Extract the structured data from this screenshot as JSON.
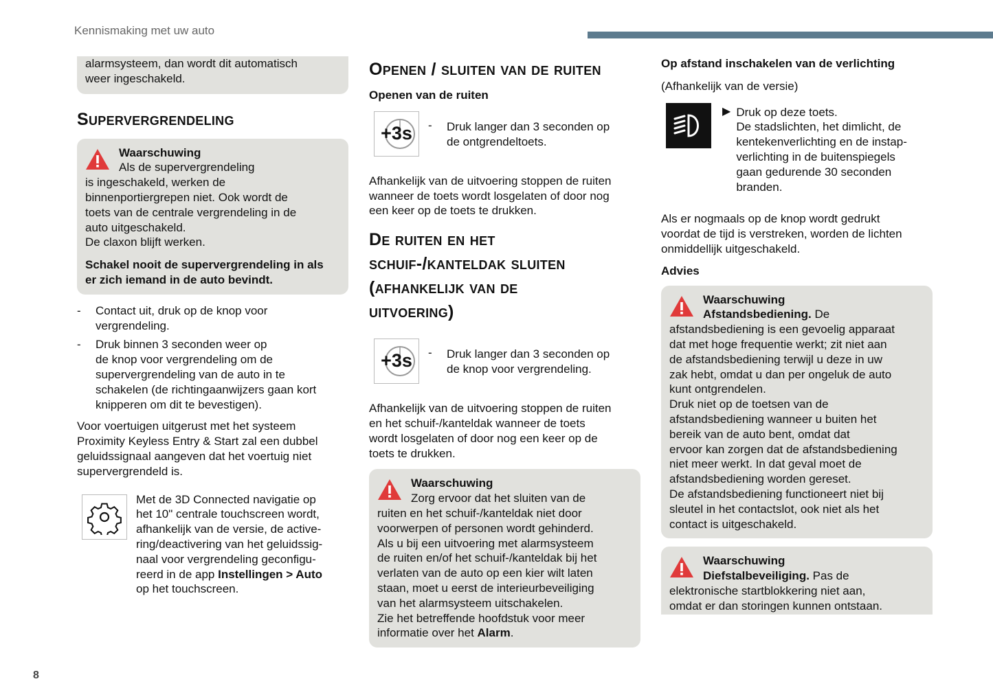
{
  "header": {
    "section": "Kennismaking met uw auto",
    "accent_color": "#5d7b8e"
  },
  "page_number": "8",
  "col1": {
    "top_box": "alarmsysteem, dan wordt dit automatisch\nweer ingeschakeld.",
    "heading": "Supervergrendeling",
    "warning": {
      "title": "Waarschuwing",
      "body": "Als de supervergrendeling\nis ingeschakeld, werken de\nbinnenportiergrepen niet. Ook wordt de\ntoets van de centrale vergrendeling in de\nauto uitgeschakeld.\nDe claxon blijft werken.",
      "bold": "Schakel nooit de supervergrendeling in als\ner zich iemand in de auto bevindt."
    },
    "bullets": [
      "Contact uit, druk op de knop voor\nvergrendeling.",
      "Druk binnen 3 seconden weer op\nde knop voor vergrendeling om de\nsupervergrendeling van de auto in te\nschakelen (de richtingaanwijzers gaan kort\nknipperen om dit te bevestigen)."
    ],
    "para": "Voor voertuigen uitgerust met het systeem\nProximity Keyless Entry & Start zal een dubbel\ngeluidssignaal aangeven dat het voertuig niet\nsupervergrendeld is.",
    "settings_text": "Met de 3D Connected navigatie op\nhet 10\" centrale touchscreen wordt,\nafhankelijk van de versie, de active-\nring/deactivering van het geluidssig-\nnaal voor vergrendeling geconfigu-\nreerd in de app ",
    "settings_bold": "Instellingen > Auto",
    "settings_end": "\nop het touchscreen."
  },
  "col2": {
    "heading1": "Openen / sluiten van de ruiten",
    "sub1": "Openen van de ruiten",
    "icon_label": "+3s",
    "step1": "Druk langer dan 3 seconden op\nde ontgrendeltoets.",
    "para1": "Afhankelijk van de uitvoering stoppen de ruiten\nwanneer de toets wordt losgelaten of door nog\neen keer op de toets te drukken.",
    "heading2": "De ruiten en het\nschuif-/kanteldak sluiten\n(afhankelijk van de\nuitvoering)",
    "step2": "Druk langer dan 3 seconden op\nde knop voor vergrendeling.",
    "para2": "Afhankelijk van de uitvoering stoppen de ruiten\nen het schuif-/kanteldak wanneer de toets\nwordt losgelaten of door nog een keer op de\ntoets te drukken.",
    "warning": {
      "title": "Waarschuwing",
      "body": "Zorg ervoor dat het sluiten van de\nruiten en het schuif-/kanteldak niet door\nvoorwerpen of personen wordt gehinderd.\nAls u bij een uitvoering met alarmsysteem\nde ruiten en/of het schuif-/kanteldak bij het\nverlaten van de auto op een kier wilt laten\nstaan, moet u eerst de interieurbeveiliging\nvan het alarmsysteem uitschakelen.\nZie het betreffende hoofdstuk voor meer\ninformatie over het ",
      "bold_end": "Alarm",
      "end": "."
    }
  },
  "col3": {
    "heading": "Op afstand inschakelen van de verlichting",
    "version": "(Afhankelijk van de versie)",
    "step": "Druk op deze toets.\nDe stadslichten, het dimlicht, de\nkentekenverlichting en de instap-\nverlichting in de buitenspiegels\ngaan gedurende 30 seconden\nbranden.",
    "para": "Als er nogmaals op de knop wordt gedrukt\nvoordat de tijd is verstreken, worden de lichten\nonmiddellijk uitgeschakeld.",
    "advies": "Advies",
    "warning1": {
      "title": "Waarschuwing",
      "lead": "Afstandsbediening.",
      "body": " De\nafstandsbediening is een gevoelig apparaat\ndat met hoge frequentie werkt; zit niet aan\nde afstandsbediening terwijl u deze in uw\nzak hebt, omdat u dan per ongeluk de auto\nkunt ontgrendelen.\nDruk niet op de toetsen van de\nafstandsbediening wanneer u buiten het\nbereik van de auto bent, omdat dat\nervoor kan zorgen dat de afstandsbediening\nniet meer werkt. In dat geval moet de\nafstandsbediening worden gereset.\nDe afstandsbediening functioneert niet bij\nsleutel in het contactslot, ook niet als het\ncontact is uitgeschakeld."
    },
    "warning2": {
      "title": "Waarschuwing",
      "lead": "Diefstalbeveiliging.",
      "body": " Pas de\nelektronische startblokkering niet aan,\nomdat er dan storingen kunnen ontstaan."
    }
  },
  "colors": {
    "warning_red": "#e03a3a",
    "box_bg": "#e1e1dd"
  }
}
